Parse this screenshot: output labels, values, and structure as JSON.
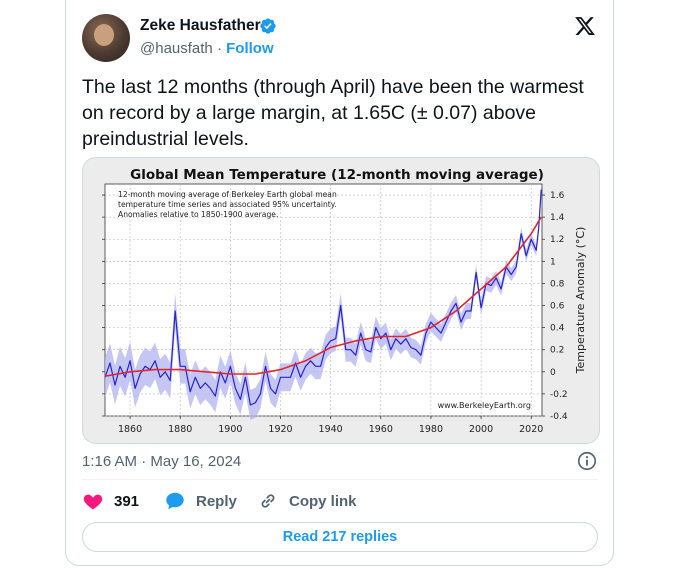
{
  "author": {
    "name": "Zeke Hausfather",
    "handle": "@hausfath",
    "separator": "·",
    "follow_label": "Follow"
  },
  "tweet": {
    "text": "The last 12 months (through April) have been the warmest on record by a large margin, at 1.65C (± 0.07) above preindustrial levels.",
    "timestamp": "1:16 AM · May 16, 2024"
  },
  "actions": {
    "likes_count": "391",
    "reply_label": "Reply",
    "copy_link_label": "Copy link",
    "read_replies_label": "Read 217 replies"
  },
  "icons": {
    "verified": "verified-badge-icon",
    "x_logo": "x-logo-icon",
    "info": "info-icon",
    "heart": "heart-icon",
    "reply": "reply-bubble-icon",
    "link": "link-icon"
  },
  "colors": {
    "accent": "#1d9bf0",
    "like": "#f91880",
    "series_line": "#2323d6",
    "trend_line": "#e0262f",
    "band": "#b3b3f2"
  },
  "chart_data": {
    "type": "line",
    "title": "Global Mean Temperature (12-month moving average)",
    "annotation": "12-month moving average of Berkeley Earth global mean\ntemperature time series and associated 95% uncertainty.\nAnomalies relative to 1850-1900 average.",
    "credit": "www.BerkeleyEarth.org",
    "xlabel": "",
    "ylabel": "Temperature Anomaly (°C)",
    "xlim": [
      1850,
      2024.3
    ],
    "ylim": [
      -0.4,
      1.7
    ],
    "x_ticks": [
      "1860",
      "1880",
      "1900",
      "1920",
      "1940",
      "1960",
      "1980",
      "2000",
      "2020"
    ],
    "y_ticks": [
      "-0.4",
      "-0.2",
      "0",
      "0.2",
      "0.4",
      "0.6",
      "0.8",
      "1",
      "1.2",
      "1.4",
      "1.6"
    ],
    "grid": true,
    "series": [
      {
        "kind": "monthly_12mo_avg",
        "x": [
          1850,
          1852,
          1854,
          1856,
          1858,
          1860,
          1862,
          1864,
          1866,
          1868,
          1870,
          1872,
          1874,
          1876,
          1878,
          1880,
          1882,
          1884,
          1886,
          1888,
          1890,
          1892,
          1894,
          1896,
          1898,
          1900,
          1902,
          1904,
          1906,
          1908,
          1910,
          1912,
          1914,
          1916,
          1918,
          1920,
          1922,
          1924,
          1926,
          1928,
          1930,
          1932,
          1934,
          1936,
          1938,
          1940,
          1942,
          1944,
          1946,
          1948,
          1950,
          1952,
          1954,
          1956,
          1958,
          1960,
          1962,
          1964,
          1966,
          1968,
          1970,
          1972,
          1974,
          1976,
          1978,
          1980,
          1982,
          1984,
          1986,
          1988,
          1990,
          1992,
          1994,
          1996,
          1998,
          2000,
          2002,
          2004,
          2006,
          2008,
          2010,
          2012,
          2014,
          2016,
          2018,
          2020,
          2022,
          2023,
          2024
        ],
        "y": [
          -0.05,
          0.08,
          -0.12,
          0.05,
          -0.05,
          0.1,
          -0.15,
          -0.02,
          0.05,
          0.02,
          0.1,
          -0.05,
          0.0,
          -0.08,
          0.55,
          0.05,
          0.05,
          -0.18,
          -0.05,
          -0.15,
          -0.1,
          -0.15,
          -0.22,
          0.0,
          -0.1,
          0.05,
          -0.15,
          -0.25,
          -0.05,
          -0.3,
          -0.28,
          -0.2,
          0.05,
          -0.15,
          -0.2,
          -0.05,
          -0.05,
          -0.05,
          0.08,
          -0.05,
          0.05,
          0.1,
          0.05,
          0.05,
          0.22,
          0.28,
          0.3,
          0.6,
          0.2,
          0.2,
          0.15,
          0.35,
          0.2,
          0.18,
          0.4,
          0.3,
          0.35,
          0.2,
          0.3,
          0.25,
          0.3,
          0.22,
          0.2,
          0.15,
          0.35,
          0.45,
          0.4,
          0.35,
          0.45,
          0.55,
          0.62,
          0.45,
          0.55,
          0.55,
          0.9,
          0.58,
          0.8,
          0.78,
          0.85,
          0.75,
          0.95,
          0.88,
          0.95,
          1.25,
          1.05,
          1.2,
          1.1,
          1.3,
          1.65
        ]
      },
      {
        "kind": "trend",
        "x": [
          1850,
          1860,
          1870,
          1880,
          1890,
          1900,
          1910,
          1920,
          1930,
          1940,
          1950,
          1960,
          1970,
          1980,
          1990,
          2000,
          2010,
          2020,
          2024
        ],
        "y": [
          -0.04,
          0.0,
          0.02,
          0.02,
          0.0,
          -0.02,
          -0.02,
          0.02,
          0.1,
          0.22,
          0.28,
          0.32,
          0.32,
          0.4,
          0.55,
          0.75,
          0.95,
          1.25,
          1.4
        ]
      }
    ]
  }
}
